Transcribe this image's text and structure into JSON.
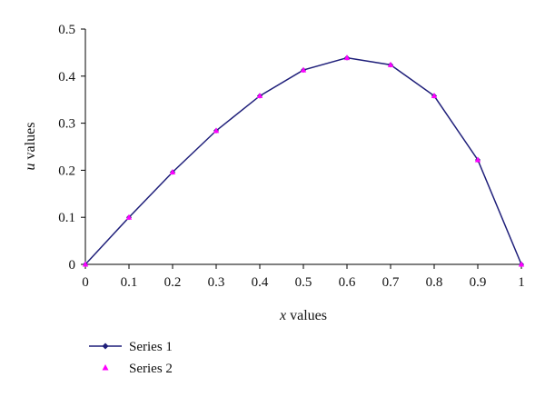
{
  "chart_data": {
    "type": "line",
    "x": [
      0,
      0.1,
      0.2,
      0.3,
      0.4,
      0.5,
      0.6,
      0.7,
      0.8,
      0.9,
      1
    ],
    "x_tick_labels": [
      "0",
      "0.1",
      "0.2",
      "0.3",
      "0.4",
      "0.5",
      "0.6",
      "0.7",
      "0.8",
      "0.9",
      "1"
    ],
    "y_ticks": [
      0,
      0.1,
      0.2,
      0.3,
      0.4,
      0.5
    ],
    "y_tick_labels": [
      "0",
      "0.1",
      "0.2",
      "0.3",
      "0.4",
      "0.5"
    ],
    "xlim": [
      0,
      1
    ],
    "ylim": [
      0,
      0.5
    ],
    "xlabel_var": "x",
    "xlabel_rest": " values",
    "ylabel_var": "u",
    "ylabel_rest": " values",
    "grid": false,
    "legend_position": "bottom-left",
    "series": [
      {
        "name": "Series 1",
        "values": [
          0,
          0.1,
          0.196,
          0.284,
          0.358,
          0.413,
          0.439,
          0.424,
          0.358,
          0.222,
          0
        ],
        "color": "#1f1f7a",
        "marker": "diamond",
        "line": true
      },
      {
        "name": "Series 2",
        "values": [
          0,
          0.1,
          0.196,
          0.284,
          0.358,
          0.413,
          0.439,
          0.424,
          0.358,
          0.222,
          0
        ],
        "color": "#ff00ff",
        "marker": "triangle",
        "line": false
      }
    ]
  }
}
